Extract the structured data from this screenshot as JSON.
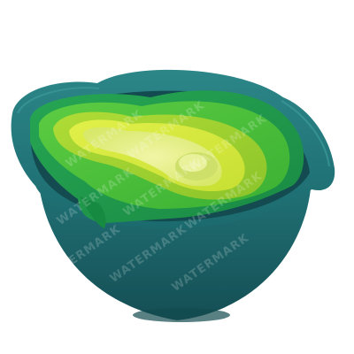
{
  "image": {
    "subject": "nesting-bowl-set",
    "background": "#ffffff",
    "colors": {
      "outer_bowl": "#1f6f74",
      "outer_bowl_dark": "#155257",
      "rim_light": "#2b8284",
      "green_bowl": "#1f9a4c",
      "light_green": "#49c23d",
      "lime": "#9bd22e",
      "pale_lime": "#d7ea3b",
      "yellow_cup": "#e7ef7d"
    },
    "watermark": {
      "text": "WATERMARK",
      "opacity": 0.18
    }
  }
}
